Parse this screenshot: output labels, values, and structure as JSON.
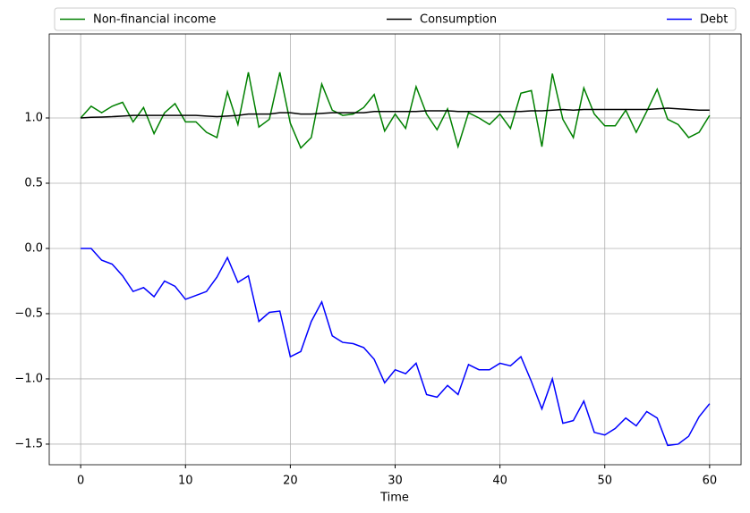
{
  "chart_data": {
    "type": "line",
    "xlabel": "Time",
    "x": [
      0,
      1,
      2,
      3,
      4,
      5,
      6,
      7,
      8,
      9,
      10,
      11,
      12,
      13,
      14,
      15,
      16,
      17,
      18,
      19,
      20,
      21,
      22,
      23,
      24,
      25,
      26,
      27,
      28,
      29,
      30,
      31,
      32,
      33,
      34,
      35,
      36,
      37,
      38,
      39,
      40,
      41,
      42,
      43,
      44,
      45,
      46,
      47,
      48,
      49,
      50,
      51,
      52,
      53,
      54,
      55,
      56,
      57,
      58,
      59,
      60
    ],
    "series": [
      {
        "name": "Non-financial income",
        "color": "#008000",
        "values": [
          1.0,
          1.09,
          1.04,
          1.09,
          1.12,
          0.97,
          1.08,
          0.88,
          1.04,
          1.11,
          0.97,
          0.97,
          0.89,
          0.85,
          1.2,
          0.95,
          1.35,
          0.93,
          0.99,
          1.35,
          0.96,
          0.77,
          0.85,
          1.26,
          1.06,
          1.02,
          1.03,
          1.08,
          1.18,
          0.9,
          1.03,
          0.92,
          1.24,
          1.03,
          0.91,
          1.07,
          0.78,
          1.04,
          1.0,
          0.95,
          1.03,
          0.92,
          1.19,
          1.21,
          0.78,
          1.34,
          0.99,
          0.85,
          1.23,
          1.03,
          0.94,
          0.94,
          1.06,
          0.89,
          1.05,
          1.22,
          0.99,
          0.95,
          0.85,
          0.89,
          1.02
        ]
      },
      {
        "name": "Consumption",
        "color": "#000000",
        "values": [
          1.0,
          1.005,
          1.007,
          1.01,
          1.015,
          1.02,
          1.02,
          1.02,
          1.02,
          1.02,
          1.02,
          1.02,
          1.015,
          1.01,
          1.015,
          1.02,
          1.03,
          1.03,
          1.03,
          1.04,
          1.04,
          1.03,
          1.03,
          1.035,
          1.04,
          1.04,
          1.04,
          1.04,
          1.05,
          1.05,
          1.05,
          1.05,
          1.05,
          1.055,
          1.055,
          1.055,
          1.05,
          1.05,
          1.05,
          1.05,
          1.05,
          1.05,
          1.05,
          1.055,
          1.055,
          1.06,
          1.065,
          1.06,
          1.065,
          1.065,
          1.065,
          1.065,
          1.065,
          1.065,
          1.065,
          1.07,
          1.075,
          1.07,
          1.065,
          1.06,
          1.06
        ]
      },
      {
        "name": "Debt",
        "color": "#0000ff",
        "values": [
          0.0,
          0.0,
          -0.09,
          -0.12,
          -0.21,
          -0.33,
          -0.3,
          -0.37,
          -0.25,
          -0.29,
          -0.39,
          -0.36,
          -0.33,
          -0.22,
          -0.07,
          -0.26,
          -0.21,
          -0.56,
          -0.49,
          -0.48,
          -0.83,
          -0.79,
          -0.56,
          -0.41,
          -0.67,
          -0.72,
          -0.73,
          -0.76,
          -0.85,
          -1.03,
          -0.93,
          -0.96,
          -0.88,
          -1.12,
          -1.14,
          -1.05,
          -1.12,
          -0.89,
          -0.93,
          -0.93,
          -0.88,
          -0.9,
          -0.83,
          -1.02,
          -1.23,
          -1.0,
          -1.34,
          -1.32,
          -1.17,
          -1.41,
          -1.43,
          -1.38,
          -1.3,
          -1.36,
          -1.25,
          -1.3,
          -1.51,
          -1.5,
          -1.44,
          -1.29,
          -1.19
        ]
      }
    ],
    "xlim": [
      -3,
      63
    ],
    "xticks": [
      0,
      10,
      20,
      30,
      40,
      50,
      60
    ],
    "ylim": [
      -1.658,
      1.644
    ],
    "yticks": [
      {
        "value": -1.5,
        "label": "−1.5"
      },
      {
        "value": -1.0,
        "label": "−1.0"
      },
      {
        "value": -0.5,
        "label": "−0.5"
      },
      {
        "value": 0.0,
        "label": "0.0"
      },
      {
        "value": 0.5,
        "label": "0.5"
      },
      {
        "value": 1.0,
        "label": "1.0"
      }
    ],
    "grid": true,
    "legend": "top"
  }
}
